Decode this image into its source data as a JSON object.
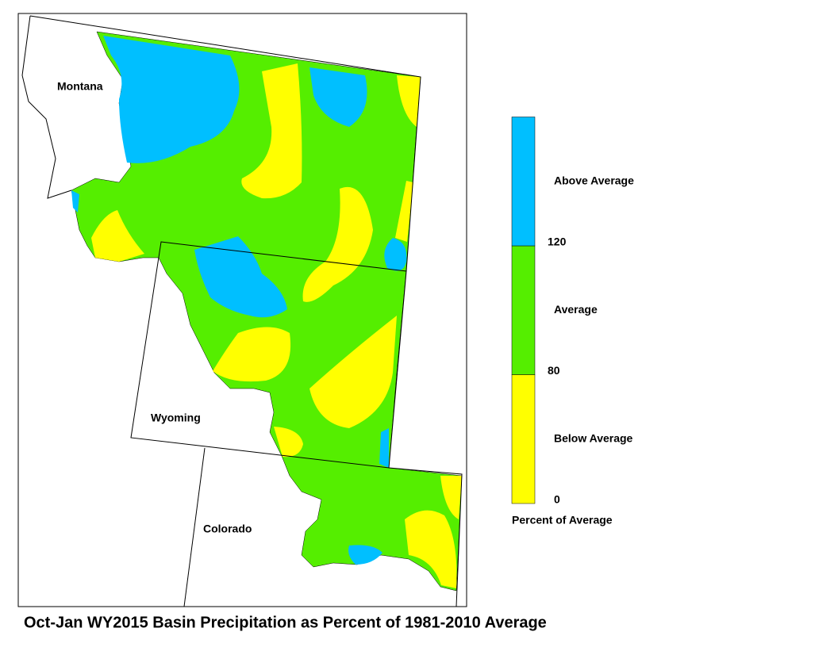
{
  "title": "Oct-Jan WY2015 Basin Precipitation as Percent of 1981-2010 Average",
  "map": {
    "states": [
      "Montana",
      "Wyoming",
      "Colorado"
    ]
  },
  "legend": {
    "caption": "Percent of Average",
    "classes": [
      {
        "label": "Below Average",
        "color": "#ffff00"
      },
      {
        "label": "Average",
        "color": "#55ee00"
      },
      {
        "label": "Above Average",
        "color": "#00bfff"
      }
    ],
    "ticks": [
      0,
      80,
      120
    ]
  }
}
